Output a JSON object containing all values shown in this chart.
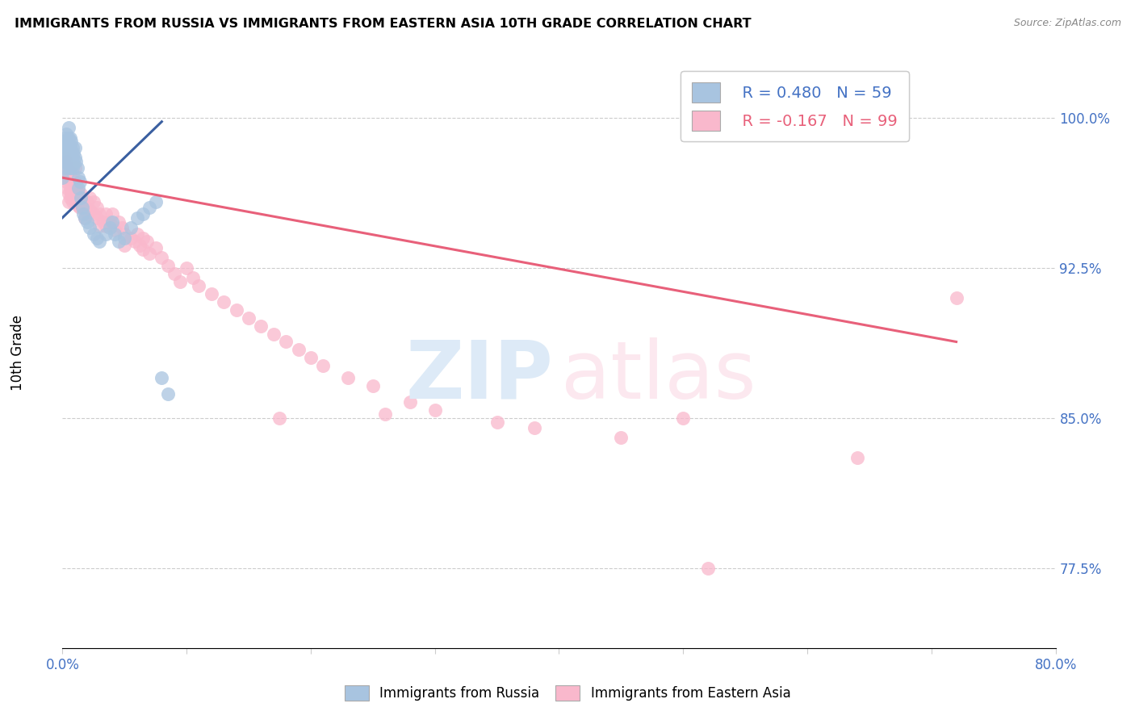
{
  "title": "IMMIGRANTS FROM RUSSIA VS IMMIGRANTS FROM EASTERN ASIA 10TH GRADE CORRELATION CHART",
  "source": "Source: ZipAtlas.com",
  "ylabel": "10th Grade",
  "right_ytick_labels": [
    "100.0%",
    "92.5%",
    "85.0%",
    "77.5%"
  ],
  "right_ytick_values": [
    1.0,
    0.925,
    0.85,
    0.775
  ],
  "legend_blue_r": "R = 0.480",
  "legend_blue_n": "N = 59",
  "legend_pink_r": "R = -0.167",
  "legend_pink_n": "N = 99",
  "blue_color": "#a8c4e0",
  "blue_line_color": "#3a5fa0",
  "pink_color": "#f9b8cc",
  "pink_line_color": "#e8607a",
  "blue_scatter": [
    [
      0.0,
      0.97
    ],
    [
      0.001,
      0.978
    ],
    [
      0.001,
      0.988
    ],
    [
      0.002,
      0.99
    ],
    [
      0.002,
      0.985
    ],
    [
      0.002,
      0.975
    ],
    [
      0.003,
      0.992
    ],
    [
      0.003,
      0.985
    ],
    [
      0.003,
      0.98
    ],
    [
      0.004,
      0.988
    ],
    [
      0.004,
      0.982
    ],
    [
      0.004,
      0.978
    ],
    [
      0.005,
      0.995
    ],
    [
      0.005,
      0.99
    ],
    [
      0.005,
      0.985
    ],
    [
      0.005,
      0.98
    ],
    [
      0.005,
      0.975
    ],
    [
      0.006,
      0.99
    ],
    [
      0.006,
      0.985
    ],
    [
      0.006,
      0.982
    ],
    [
      0.006,
      0.978
    ],
    [
      0.006,
      0.975
    ],
    [
      0.007,
      0.988
    ],
    [
      0.007,
      0.983
    ],
    [
      0.007,
      0.978
    ],
    [
      0.008,
      0.985
    ],
    [
      0.008,
      0.98
    ],
    [
      0.008,
      0.975
    ],
    [
      0.009,
      0.982
    ],
    [
      0.009,
      0.977
    ],
    [
      0.01,
      0.985
    ],
    [
      0.01,
      0.98
    ],
    [
      0.011,
      0.978
    ],
    [
      0.012,
      0.975
    ],
    [
      0.013,
      0.97
    ],
    [
      0.013,
      0.965
    ],
    [
      0.014,
      0.968
    ],
    [
      0.015,
      0.96
    ],
    [
      0.016,
      0.955
    ],
    [
      0.017,
      0.952
    ],
    [
      0.018,
      0.95
    ],
    [
      0.02,
      0.948
    ],
    [
      0.022,
      0.945
    ],
    [
      0.025,
      0.942
    ],
    [
      0.028,
      0.94
    ],
    [
      0.03,
      0.938
    ],
    [
      0.035,
      0.942
    ],
    [
      0.038,
      0.945
    ],
    [
      0.04,
      0.948
    ],
    [
      0.042,
      0.942
    ],
    [
      0.045,
      0.938
    ],
    [
      0.05,
      0.94
    ],
    [
      0.055,
      0.945
    ],
    [
      0.06,
      0.95
    ],
    [
      0.065,
      0.952
    ],
    [
      0.07,
      0.955
    ],
    [
      0.075,
      0.958
    ],
    [
      0.08,
      0.87
    ],
    [
      0.085,
      0.862
    ]
  ],
  "pink_scatter": [
    [
      0.0,
      0.975
    ],
    [
      0.001,
      0.972
    ],
    [
      0.002,
      0.98
    ],
    [
      0.002,
      0.97
    ],
    [
      0.003,
      0.978
    ],
    [
      0.003,
      0.968
    ],
    [
      0.004,
      0.975
    ],
    [
      0.004,
      0.965
    ],
    [
      0.005,
      0.972
    ],
    [
      0.005,
      0.962
    ],
    [
      0.005,
      0.958
    ],
    [
      0.006,
      0.97
    ],
    [
      0.006,
      0.965
    ],
    [
      0.006,
      0.96
    ],
    [
      0.007,
      0.968
    ],
    [
      0.007,
      0.962
    ],
    [
      0.008,
      0.972
    ],
    [
      0.008,
      0.965
    ],
    [
      0.008,
      0.958
    ],
    [
      0.009,
      0.968
    ],
    [
      0.01,
      0.975
    ],
    [
      0.01,
      0.968
    ],
    [
      0.01,
      0.96
    ],
    [
      0.011,
      0.966
    ],
    [
      0.011,
      0.958
    ],
    [
      0.012,
      0.964
    ],
    [
      0.012,
      0.958
    ],
    [
      0.013,
      0.962
    ],
    [
      0.013,
      0.956
    ],
    [
      0.014,
      0.96
    ],
    [
      0.014,
      0.955
    ],
    [
      0.015,
      0.962
    ],
    [
      0.015,
      0.957
    ],
    [
      0.016,
      0.96
    ],
    [
      0.016,
      0.955
    ],
    [
      0.017,
      0.958
    ],
    [
      0.018,
      0.955
    ],
    [
      0.018,
      0.95
    ],
    [
      0.02,
      0.958
    ],
    [
      0.02,
      0.952
    ],
    [
      0.022,
      0.96
    ],
    [
      0.022,
      0.954
    ],
    [
      0.025,
      0.958
    ],
    [
      0.025,
      0.952
    ],
    [
      0.028,
      0.955
    ],
    [
      0.028,
      0.95
    ],
    [
      0.03,
      0.952
    ],
    [
      0.03,
      0.946
    ],
    [
      0.033,
      0.948
    ],
    [
      0.035,
      0.952
    ],
    [
      0.035,
      0.946
    ],
    [
      0.038,
      0.948
    ],
    [
      0.04,
      0.952
    ],
    [
      0.04,
      0.946
    ],
    [
      0.042,
      0.944
    ],
    [
      0.045,
      0.948
    ],
    [
      0.048,
      0.945
    ],
    [
      0.05,
      0.942
    ],
    [
      0.05,
      0.936
    ],
    [
      0.055,
      0.94
    ],
    [
      0.058,
      0.938
    ],
    [
      0.06,
      0.942
    ],
    [
      0.062,
      0.936
    ],
    [
      0.065,
      0.94
    ],
    [
      0.065,
      0.934
    ],
    [
      0.068,
      0.938
    ],
    [
      0.07,
      0.932
    ],
    [
      0.075,
      0.935
    ],
    [
      0.08,
      0.93
    ],
    [
      0.085,
      0.926
    ],
    [
      0.09,
      0.922
    ],
    [
      0.095,
      0.918
    ],
    [
      0.1,
      0.925
    ],
    [
      0.105,
      0.92
    ],
    [
      0.11,
      0.916
    ],
    [
      0.12,
      0.912
    ],
    [
      0.13,
      0.908
    ],
    [
      0.14,
      0.904
    ],
    [
      0.15,
      0.9
    ],
    [
      0.16,
      0.896
    ],
    [
      0.17,
      0.892
    ],
    [
      0.175,
      0.85
    ],
    [
      0.18,
      0.888
    ],
    [
      0.19,
      0.884
    ],
    [
      0.2,
      0.88
    ],
    [
      0.21,
      0.876
    ],
    [
      0.23,
      0.87
    ],
    [
      0.25,
      0.866
    ],
    [
      0.26,
      0.852
    ],
    [
      0.28,
      0.858
    ],
    [
      0.3,
      0.854
    ],
    [
      0.35,
      0.848
    ],
    [
      0.38,
      0.845
    ],
    [
      0.45,
      0.84
    ],
    [
      0.5,
      0.85
    ],
    [
      0.52,
      0.775
    ],
    [
      0.58,
      1.0
    ],
    [
      0.64,
      0.83
    ],
    [
      0.72,
      0.91
    ]
  ],
  "blue_trend_x": [
    0.0,
    0.08
  ],
  "blue_trend_y": [
    0.95,
    0.998
  ],
  "pink_trend_x": [
    0.0,
    0.72
  ],
  "pink_trend_y": [
    0.97,
    0.888
  ],
  "xmin": 0.0,
  "xmax": 0.8,
  "ymin": 0.735,
  "ymax": 1.03,
  "xtick_positions": [
    0.0,
    0.1,
    0.2,
    0.3,
    0.4,
    0.5,
    0.6,
    0.7,
    0.8
  ]
}
